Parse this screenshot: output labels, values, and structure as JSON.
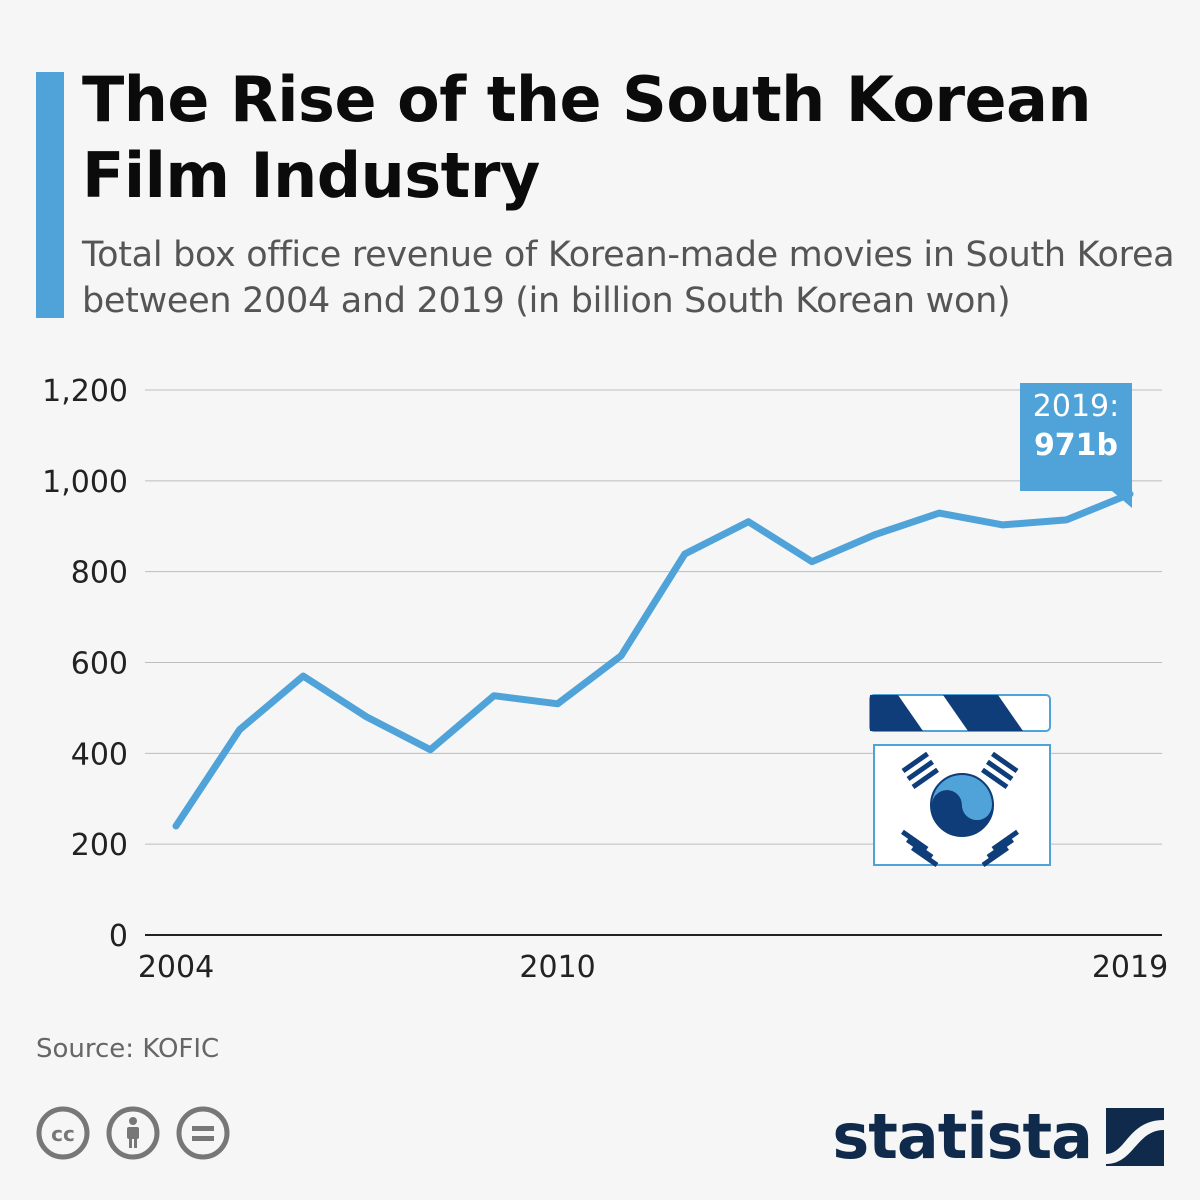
{
  "header": {
    "title": "The Rise of the South Korean Film Industry",
    "subtitle": "Total box office revenue of Korean-made movies in South Korea between 2004 and 2019 (in billion South Korean won)"
  },
  "chart_data": {
    "type": "line",
    "title": "The Rise of the South Korean Film Industry",
    "subtitle": "Total box office revenue of Korean-made movies in South Korea between 2004 and 2019 (in billion South Korean won)",
    "xlabel": "",
    "ylabel": "",
    "x": [
      2004,
      2005,
      2006,
      2007,
      2008,
      2009,
      2010,
      2011,
      2012,
      2013,
      2014,
      2015,
      2016,
      2017,
      2018,
      2019
    ],
    "series": [
      {
        "values": [
          240,
          452,
          570,
          480,
          408,
          527,
          509,
          615,
          839,
          910,
          822,
          882,
          929,
          903,
          914,
          971
        ]
      }
    ],
    "x_tick_labels": [
      "2004",
      "2010",
      "2019"
    ],
    "y_tick_labels": [
      "0",
      "200",
      "400",
      "600",
      "800",
      "1,000",
      "1,200"
    ],
    "ylim": [
      0,
      1200
    ],
    "xlim": [
      2004,
      2019
    ],
    "grid": true,
    "annotation": {
      "line1": "2019:",
      "line2": "971b"
    },
    "colors": {
      "line": "#4fa3d9",
      "annotation_bg": "#4fa3d9",
      "grid": "#bdbdbd"
    }
  },
  "footer": {
    "source": "Source: KOFIC",
    "brand": "statista",
    "license_icons": [
      "cc-icon",
      "attribution-icon",
      "no-derivatives-icon"
    ]
  }
}
